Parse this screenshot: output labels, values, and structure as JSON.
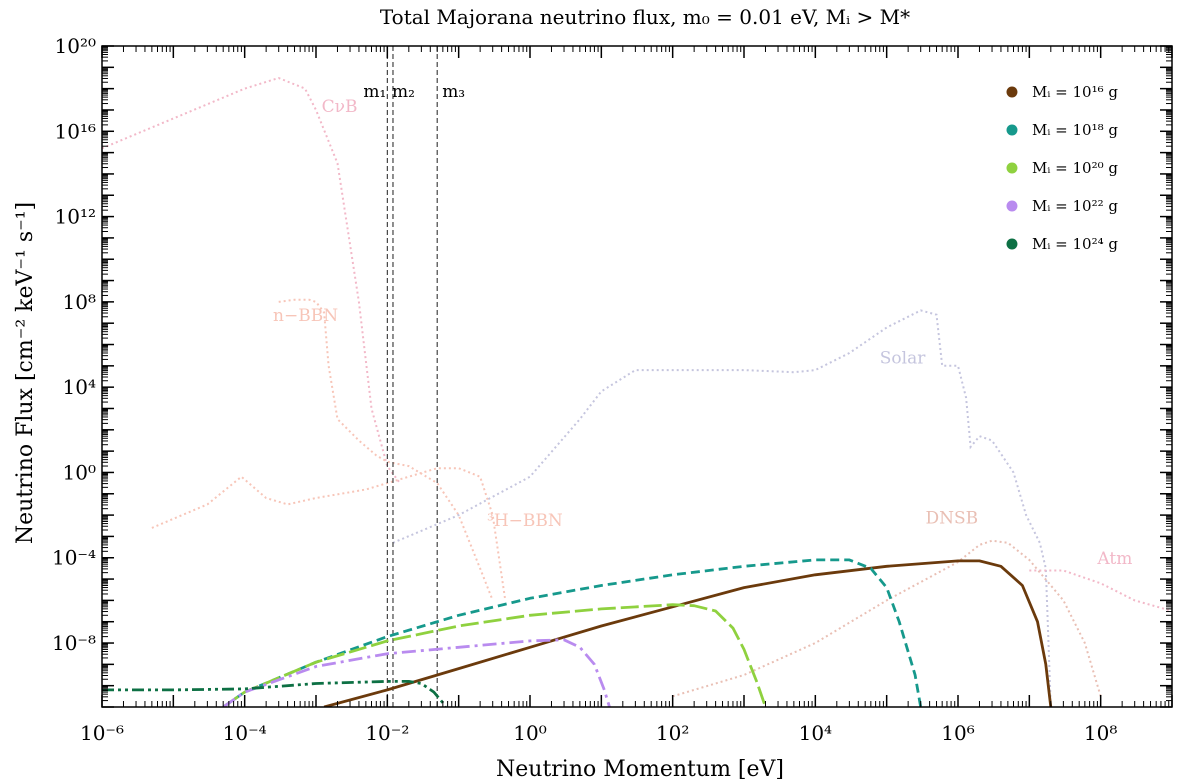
{
  "chart_data": {
    "type": "line",
    "title": "Total Majorana neutrino flux, m₀ = 0.01 eV, Mᵢ > M*",
    "xlabel": "Neutrino Momentum [eV]",
    "ylabel": "Neutrino Flux [cm⁻² keV⁻¹ s⁻¹]",
    "x_scale": "log",
    "y_scale": "log",
    "xlim": [
      1e-06,
      1000000000.0
    ],
    "ylim": [
      1e-11,
      1e+20
    ],
    "x_ticks": [
      {
        "value": 1e-06,
        "label": "10⁻⁶"
      },
      {
        "value": 0.0001,
        "label": "10⁻⁴"
      },
      {
        "value": 0.01,
        "label": "10⁻²"
      },
      {
        "value": 1,
        "label": "10⁰"
      },
      {
        "value": 100.0,
        "label": "10²"
      },
      {
        "value": 10000.0,
        "label": "10⁴"
      },
      {
        "value": 1000000.0,
        "label": "10⁶"
      },
      {
        "value": 100000000.0,
        "label": "10⁸"
      }
    ],
    "y_ticks": [
      {
        "value": 1e-08,
        "label": "10⁻⁸"
      },
      {
        "value": 0.0001,
        "label": "10⁻⁴"
      },
      {
        "value": 1,
        "label": "10⁰"
      },
      {
        "value": 10000.0,
        "label": "10⁴"
      },
      {
        "value": 100000000.0,
        "label": "10⁸"
      },
      {
        "value": 1000000000000.0,
        "label": "10¹²"
      },
      {
        "value": 1e+16,
        "label": "10¹⁶"
      },
      {
        "value": 1e+20,
        "label": "10²⁰"
      }
    ],
    "grid": false,
    "legend_position": "top-right",
    "series": [
      {
        "name": "Mᵢ = 10¹⁶ g",
        "color": "#6b3a0c",
        "dash": "solid",
        "points": [
          [
            0.0013,
            -11
          ],
          [
            0.01,
            -10.2
          ],
          [
            0.1,
            -9.2
          ],
          [
            1,
            -8.2
          ],
          [
            10,
            -7.2
          ],
          [
            100,
            -6.3
          ],
          [
            1000,
            -5.4
          ],
          [
            10000,
            -4.8
          ],
          [
            100000,
            -4.4
          ],
          [
            1000000,
            -4.15
          ],
          [
            2000000,
            -4.15
          ],
          [
            4000000,
            -4.4
          ],
          [
            8000000,
            -5.3
          ],
          [
            13000000,
            -7.0
          ],
          [
            17000000,
            -9.0
          ],
          [
            20000000,
            -11
          ]
        ]
      },
      {
        "name": "Mᵢ = 10¹⁸ g",
        "color": "#16998c",
        "dash": "dashed",
        "points": [
          [
            5e-05,
            -11
          ],
          [
            0.0001,
            -10.3
          ],
          [
            0.001,
            -8.9
          ],
          [
            0.01,
            -7.7
          ],
          [
            0.1,
            -6.7
          ],
          [
            1,
            -5.9
          ],
          [
            10,
            -5.3
          ],
          [
            100,
            -4.8
          ],
          [
            1000,
            -4.4
          ],
          [
            10000,
            -4.1
          ],
          [
            30000,
            -4.1
          ],
          [
            60000,
            -4.5
          ],
          [
            100000,
            -5.4
          ],
          [
            150000,
            -7.0
          ],
          [
            250000,
            -9.5
          ],
          [
            300000,
            -11
          ]
        ]
      },
      {
        "name": "Mᵢ = 10²⁰ g",
        "color": "#8fd13f",
        "dash": "longdash",
        "points": [
          [
            5e-05,
            -11
          ],
          [
            0.0001,
            -10.3
          ],
          [
            0.001,
            -8.9
          ],
          [
            0.01,
            -7.9
          ],
          [
            0.1,
            -7.2
          ],
          [
            1,
            -6.7
          ],
          [
            10,
            -6.4
          ],
          [
            100,
            -6.2
          ],
          [
            200,
            -6.25
          ],
          [
            400,
            -6.5
          ],
          [
            700,
            -7.3
          ],
          [
            1000,
            -8.3
          ],
          [
            1500,
            -9.8
          ],
          [
            2000,
            -11
          ]
        ]
      },
      {
        "name": "Mᵢ = 10²² g",
        "color": "#b98bef",
        "dash": "dashdot",
        "points": [
          [
            5e-05,
            -11
          ],
          [
            0.0001,
            -10.3
          ],
          [
            0.001,
            -9.1
          ],
          [
            0.01,
            -8.5
          ],
          [
            0.1,
            -8.2
          ],
          [
            1,
            -7.9
          ],
          [
            3,
            -7.85
          ],
          [
            5,
            -8.2
          ],
          [
            8,
            -9.0
          ],
          [
            11,
            -10.2
          ],
          [
            13,
            -11
          ]
        ]
      },
      {
        "name": "Mᵢ = 10²⁴ g",
        "color": "#0d7044",
        "dash": "dashdotdot",
        "points": [
          [
            1e-06,
            -10.2
          ],
          [
            1e-05,
            -10.2
          ],
          [
            0.0001,
            -10.15
          ],
          [
            0.001,
            -9.9
          ],
          [
            0.01,
            -9.8
          ],
          [
            0.02,
            -9.8
          ],
          [
            0.03,
            -9.9
          ],
          [
            0.045,
            -10.3
          ],
          [
            0.06,
            -10.8
          ],
          [
            0.065,
            -11
          ]
        ]
      }
    ],
    "background_sources": [
      {
        "name": "CνB",
        "color": "#f2b8c8",
        "points": [
          [
            1e-06,
            15.2
          ],
          [
            1e-05,
            16.6
          ],
          [
            0.0001,
            18
          ],
          [
            0.0003,
            18.5
          ],
          [
            0.0007,
            18
          ],
          [
            0.001,
            17
          ],
          [
            0.002,
            14.5
          ],
          [
            0.004,
            8
          ],
          [
            0.006,
            3
          ],
          [
            0.01,
            0.3
          ],
          [
            0.015,
            -0.5
          ]
        ]
      },
      {
        "name": "n−BBN",
        "color": "#f7c5b8",
        "points": [
          [
            0.0003,
            8
          ],
          [
            0.0005,
            8.1
          ],
          [
            0.0008,
            8.1
          ],
          [
            0.001,
            8
          ],
          [
            0.0013,
            7.5
          ],
          [
            0.0015,
            5
          ],
          [
            0.002,
            2.5
          ],
          [
            0.004,
            1.5
          ],
          [
            0.007,
            0.8
          ],
          [
            0.01,
            0.5
          ],
          [
            0.02,
            0.3
          ],
          [
            0.05,
            -0.5
          ],
          [
            0.1,
            -2
          ],
          [
            0.2,
            -4.5
          ],
          [
            0.3,
            -6
          ]
        ]
      },
      {
        "name": "³H−BBN",
        "color": "#f7c5b8",
        "points": [
          [
            5e-06,
            -2.6
          ],
          [
            3e-05,
            -1.5
          ],
          [
            9e-05,
            -0.2
          ],
          [
            0.0002,
            -1.2
          ],
          [
            0.0004,
            -1.5
          ],
          [
            0.001,
            -1.2
          ],
          [
            0.005,
            -0.8
          ],
          [
            0.01,
            -0.5
          ],
          [
            0.05,
            0.2
          ],
          [
            0.1,
            0.2
          ],
          [
            0.2,
            -0.2
          ],
          [
            0.3,
            -2
          ],
          [
            0.45,
            -6
          ]
        ]
      },
      {
        "name": "Solar",
        "color": "#c5c5de",
        "points": [
          [
            0.012,
            -3.3
          ],
          [
            0.1,
            -2
          ],
          [
            1,
            -0.2
          ],
          [
            5,
            2.5
          ],
          [
            10,
            3.8
          ],
          [
            30,
            4.8
          ],
          [
            100,
            4.8
          ],
          [
            1000,
            4.8
          ],
          [
            5000,
            4.7
          ],
          [
            10000,
            4.8
          ],
          [
            30000,
            5.6
          ],
          [
            100000,
            6.8
          ],
          [
            300000,
            7.6
          ],
          [
            500000,
            7.4
          ],
          [
            600000,
            5
          ],
          [
            1000000,
            5
          ],
          [
            1300000,
            3.5
          ],
          [
            1500000,
            1.2
          ],
          [
            2000000,
            1.7
          ],
          [
            3000000,
            1.5
          ],
          [
            6000000,
            0
          ],
          [
            9000000,
            -2
          ],
          [
            14000000,
            -3.3
          ],
          [
            17000000,
            -4.5
          ],
          [
            20000000,
            -11
          ]
        ]
      },
      {
        "name": "DNSB",
        "color": "#e9bfb4",
        "points": [
          [
            100,
            -10.5
          ],
          [
            1000,
            -9.5
          ],
          [
            10000,
            -8
          ],
          [
            100000,
            -6
          ],
          [
            1000000,
            -4.2
          ],
          [
            2000000,
            -3.4
          ],
          [
            3000000,
            -3.2
          ],
          [
            5000000,
            -3.3
          ],
          [
            10000000,
            -4.1
          ],
          [
            30000000,
            -6
          ],
          [
            60000000,
            -8
          ],
          [
            100000000,
            -10.5
          ]
        ]
      },
      {
        "name": "Atm",
        "color": "#f2b8c8",
        "points": [
          [
            10000000,
            -4.6
          ],
          [
            30000000,
            -4.6
          ],
          [
            100000000,
            -5.2
          ],
          [
            300000000,
            -6
          ],
          [
            1000000000,
            -6.5
          ]
        ]
      }
    ],
    "reference_lines": [
      {
        "label": "m₁",
        "x": 0.01
      },
      {
        "label": "m₂",
        "x": 0.012
      },
      {
        "label": "m₃",
        "x": 0.05
      }
    ],
    "annotations": [
      "CνB",
      "n−BBN",
      "³H−BBN",
      "Solar",
      "DNSB",
      "Atm"
    ]
  }
}
